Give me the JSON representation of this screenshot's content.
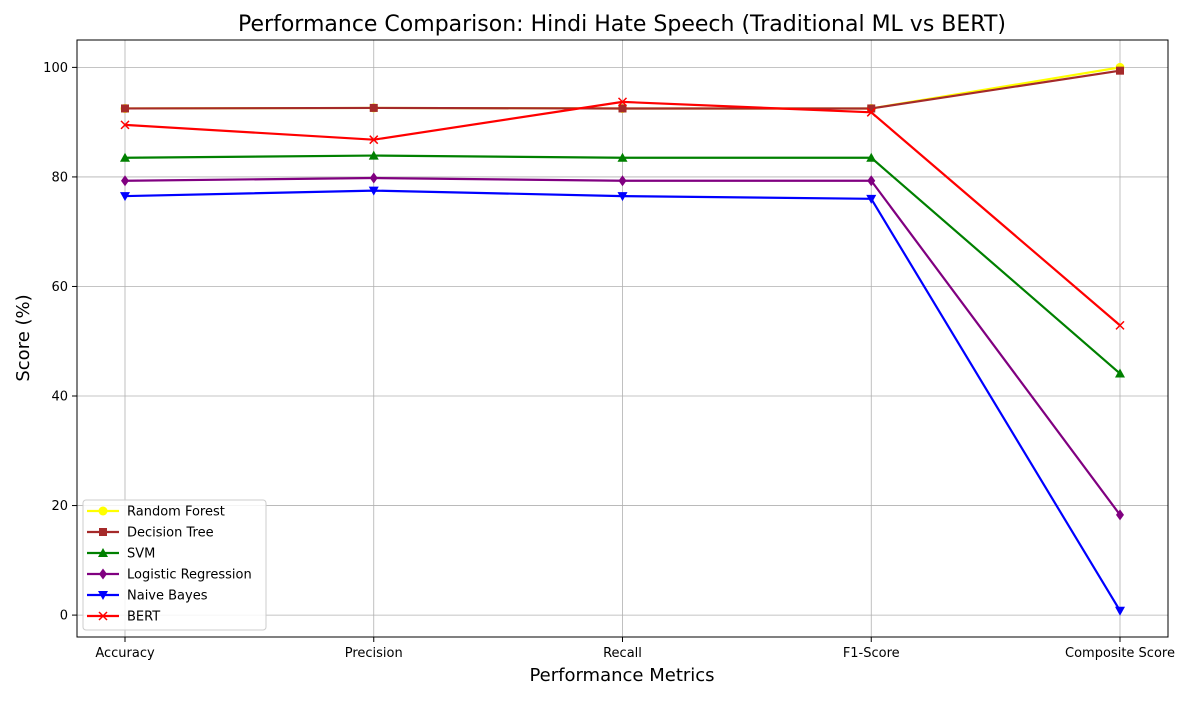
{
  "chart_data": {
    "type": "line",
    "title": "Performance Comparison: Hindi Hate Speech (Traditional ML vs BERT)",
    "xlabel": "Performance Metrics",
    "ylabel": "Score (%)",
    "categories": [
      "Accuracy",
      "Precision",
      "Recall",
      "F1-Score",
      "Composite Score"
    ],
    "ylim": [
      -4,
      105
    ],
    "yticks": [
      0,
      20,
      40,
      60,
      80,
      100
    ],
    "grid": true,
    "legend_position": "lower-left",
    "series": [
      {
        "name": "Random Forest",
        "color": "#ffff00",
        "marker": "circle",
        "values": [
          92.5,
          92.6,
          92.5,
          92.5,
          100.0
        ]
      },
      {
        "name": "Decision Tree",
        "color": "#a52a2a",
        "marker": "square",
        "values": [
          92.5,
          92.6,
          92.5,
          92.5,
          99.4
        ]
      },
      {
        "name": "SVM",
        "color": "#008000",
        "marker": "triangle-up",
        "values": [
          83.5,
          83.9,
          83.5,
          83.5,
          44.1
        ]
      },
      {
        "name": "Logistic Regression",
        "color": "#800080",
        "marker": "diamond",
        "values": [
          79.3,
          79.8,
          79.3,
          79.3,
          18.3
        ]
      },
      {
        "name": "Naive Bayes",
        "color": "#0000ff",
        "marker": "triangle-down",
        "values": [
          76.5,
          77.5,
          76.5,
          76.0,
          0.8
        ]
      },
      {
        "name": "BERT",
        "color": "#ff0000",
        "marker": "x",
        "values": [
          89.5,
          86.8,
          93.7,
          91.8,
          52.9
        ]
      }
    ]
  }
}
